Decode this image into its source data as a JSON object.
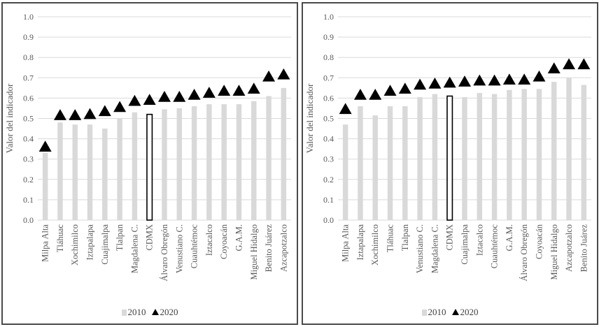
{
  "legend": {
    "series_2010": "2010",
    "series_2020": "2020"
  },
  "colors": {
    "bar_2010": "#d9d9d9",
    "marker_2020": "#000000",
    "highlight_border": "#000000",
    "grid": "#d9d9d9",
    "axis_text": "#595959"
  },
  "chart_data": [
    {
      "type": "bar",
      "ylabel": "Valor del indicador",
      "ylim": [
        0,
        1.0
      ],
      "yticks": [
        "0.0",
        "0.1",
        "0.2",
        "0.3",
        "0.4",
        "0.5",
        "0.6",
        "0.7",
        "0.8",
        "0.9",
        "1.0"
      ],
      "highlight_category": "CDMX",
      "categories": [
        "Milpa Alta",
        "Tláhuac",
        "Xochimilco",
        "Iztapalapa",
        "Cuajimalpa",
        "Tlalpan",
        "Magdalena C.",
        "CDMX",
        "Álvaro Obregón",
        "Venustiano C.",
        "Cuauhtémoc",
        "Iztacalco",
        "Coyoacán",
        "G.A.M.",
        "Miguel Hidalgo",
        "Benito Juárez",
        "Azcapotzalco"
      ],
      "series": [
        {
          "name": "2010",
          "style": "bar",
          "values": [
            0.33,
            0.48,
            0.47,
            0.47,
            0.45,
            0.5,
            0.53,
            0.52,
            0.545,
            0.55,
            0.56,
            0.57,
            0.57,
            0.57,
            0.585,
            0.61,
            0.65
          ]
        },
        {
          "name": "2020",
          "style": "triangle-marker",
          "values": [
            0.36,
            0.515,
            0.515,
            0.52,
            0.535,
            0.555,
            0.585,
            0.59,
            0.605,
            0.605,
            0.615,
            0.625,
            0.635,
            0.635,
            0.645,
            0.705,
            0.715
          ]
        }
      ]
    },
    {
      "type": "bar",
      "ylabel": "Valor del indicador",
      "ylim": [
        0,
        1.0
      ],
      "yticks": [
        "0.0",
        "0.1",
        "0.2",
        "0.3",
        "0.4",
        "0.5",
        "0.6",
        "0.7",
        "0.8",
        "0.9",
        "1.0"
      ],
      "highlight_category": "CDMX",
      "categories": [
        "Milpa Alta",
        "Iztapalapa",
        "Xochimilco",
        "Tláhuac",
        "Tlalpan",
        "Venustiano C.",
        "Magdalena C.",
        "CDMX",
        "Cuajimalpa",
        "Iztacalco",
        "Cuauhtémoc",
        "G.A.M.",
        "Álvaro Obregón",
        "Coyoacán",
        "Miguel Hidalgo",
        "Azcapotzalco",
        "Benito Juárez"
      ],
      "series": [
        {
          "name": "2010",
          "style": "bar",
          "values": [
            0.47,
            0.56,
            0.515,
            0.56,
            0.56,
            0.605,
            0.62,
            0.61,
            0.605,
            0.625,
            0.62,
            0.64,
            0.645,
            0.645,
            0.68,
            0.7,
            0.665
          ]
        },
        {
          "name": "2020",
          "style": "triangle-marker",
          "values": [
            0.545,
            0.615,
            0.615,
            0.635,
            0.645,
            0.665,
            0.67,
            0.675,
            0.68,
            0.685,
            0.685,
            0.69,
            0.69,
            0.705,
            0.745,
            0.765,
            0.765
          ]
        }
      ]
    }
  ]
}
